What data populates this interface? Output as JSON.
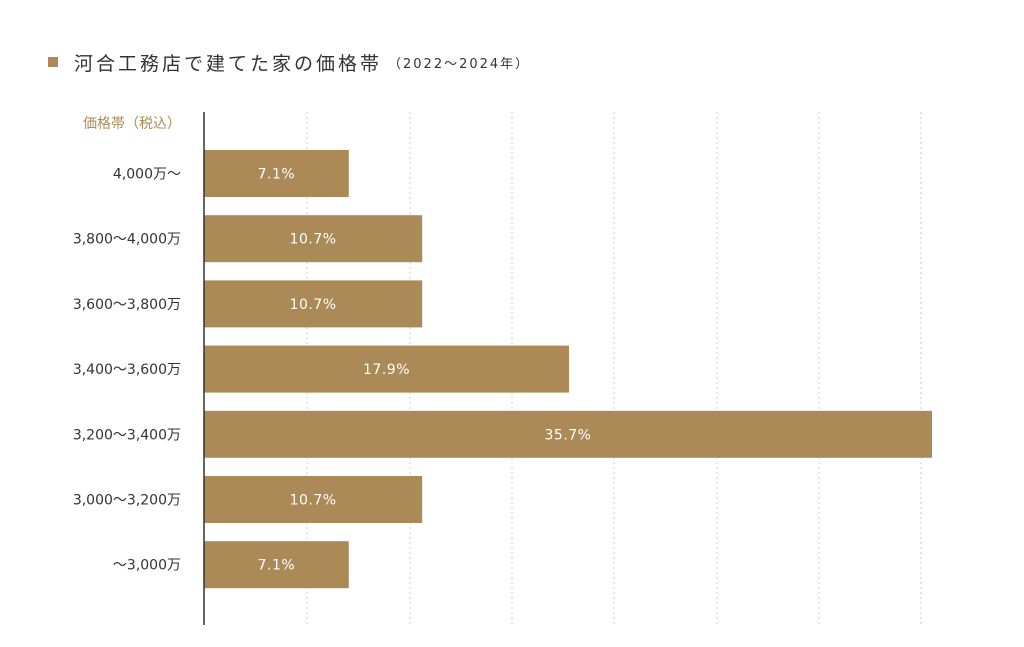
{
  "title": {
    "main": "河合工務店で建てた家の価格帯",
    "sub": "（2022～2024年）"
  },
  "colors": {
    "bar": "#ac8a58",
    "accent": "#ac8a58",
    "axis": "#333333",
    "grid": "#cfcfcf"
  },
  "chart_data": {
    "type": "bar",
    "orientation": "horizontal",
    "ylabel": "価格帯（税込）",
    "categories": [
      "4,000万～",
      "3,800～4,000万",
      "3,600～3,800万",
      "3,400～3,600万",
      "3,200～3,400万",
      "3,000～3,200万",
      "～3,000万"
    ],
    "values": [
      7.1,
      10.7,
      10.7,
      17.9,
      35.7,
      10.7,
      7.1
    ],
    "value_labels": [
      "7.1%",
      "10.7%",
      "10.7%",
      "17.9%",
      "35.7%",
      "10.7%",
      "7.1%"
    ],
    "unit": "%",
    "xlim": [
      0,
      35.7
    ],
    "grid": true,
    "grid_style": "dashed-vertical"
  }
}
